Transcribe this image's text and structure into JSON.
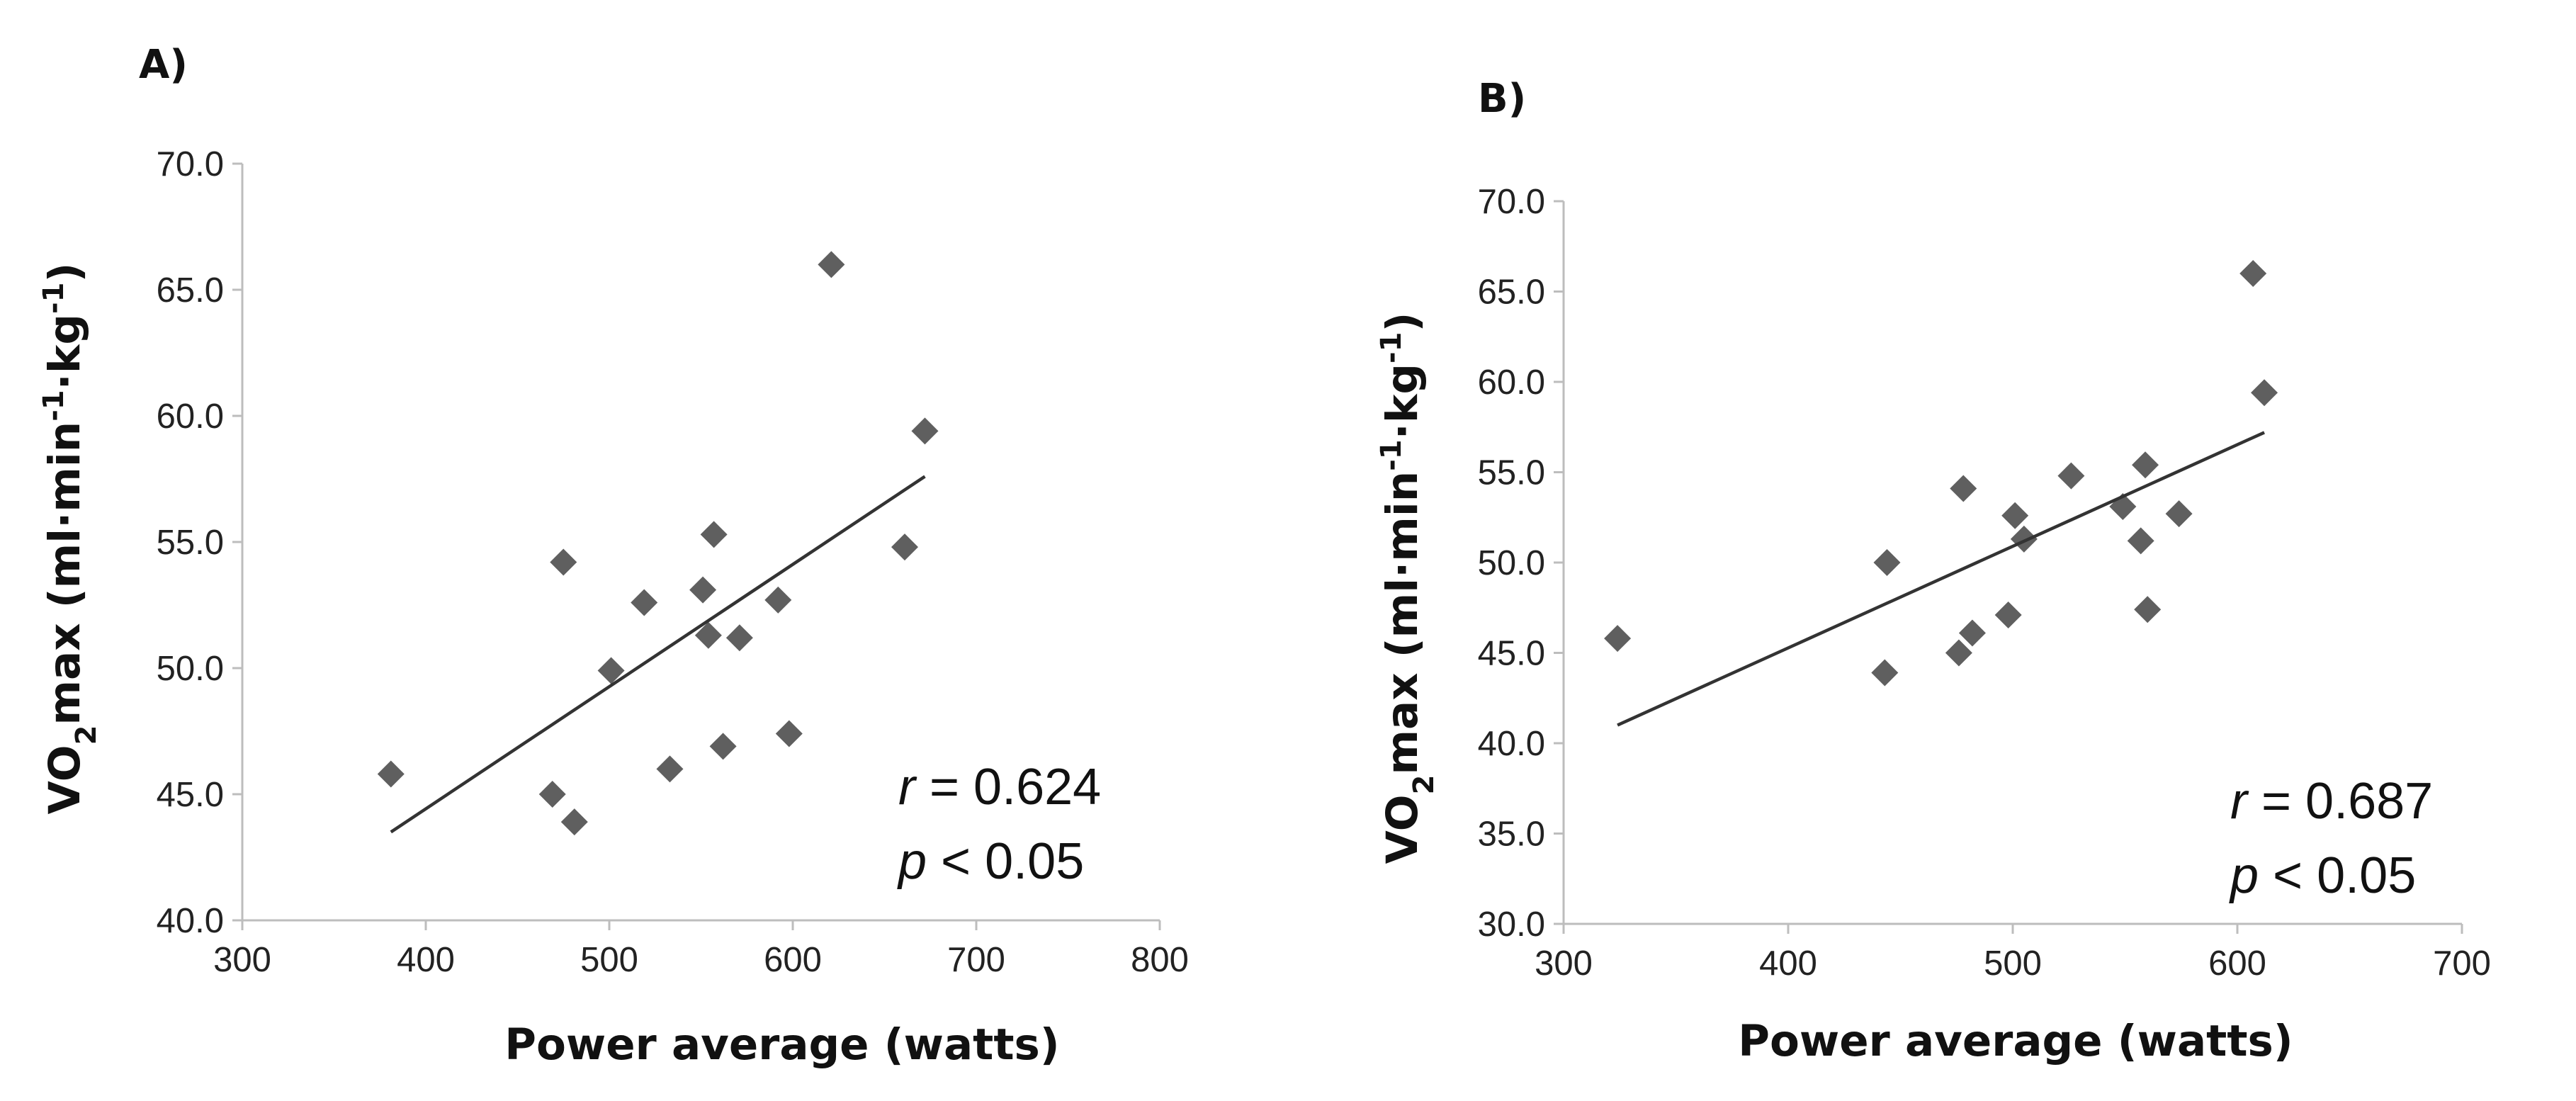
{
  "chart_data": [
    {
      "type": "scatter",
      "panel_label": "A)",
      "xlabel": "Power average (watts)",
      "ylabel": {
        "base": "VO",
        "sub": "2",
        "rest": "max (ml·min",
        "sup1": "-1",
        "mid": "·kg",
        "sup2": "-1",
        "end": ")"
      },
      "xlim": [
        300,
        800
      ],
      "ylim": [
        40,
        70
      ],
      "xticks": [
        300,
        400,
        500,
        600,
        700,
        800
      ],
      "yticks": [
        "40.0",
        "45.0",
        "50.0",
        "55.0",
        "60.0",
        "65.0",
        "70.0"
      ],
      "x": [
        381,
        469,
        475,
        481,
        501,
        519,
        533,
        551,
        554,
        557,
        562,
        571,
        592,
        598,
        621,
        661,
        672
      ],
      "y": [
        45.8,
        45.0,
        54.2,
        43.9,
        49.9,
        52.6,
        46.0,
        53.1,
        51.3,
        55.3,
        46.9,
        51.2,
        52.7,
        47.4,
        66.0,
        54.8,
        59.4
      ],
      "trendline": {
        "x": [
          381,
          672
        ],
        "y": [
          43.5,
          57.6
        ]
      },
      "annotation": {
        "r_symbol": "r",
        "r_text": " = 0.624",
        "p_symbol": "p",
        "p_text": " < 0.05"
      },
      "series_color": "#5f5f5f",
      "legend": "none",
      "grid": false
    },
    {
      "type": "scatter",
      "panel_label": "B)",
      "xlabel": "Power average (watts)",
      "ylabel": {
        "base": "VO",
        "sub": "2",
        "rest": "max (ml·min",
        "sup1": "-1",
        "mid": "·kg",
        "sup2": "-1",
        "end": ")"
      },
      "xlim": [
        300,
        700
      ],
      "ylim": [
        30,
        70
      ],
      "xticks": [
        300,
        400,
        500,
        600,
        700
      ],
      "yticks": [
        "30.0",
        "35.0",
        "40.0",
        "45.0",
        "50.0",
        "55.0",
        "60.0",
        "65.0",
        "70.0"
      ],
      "x": [
        324,
        443,
        444,
        476,
        478,
        482,
        498,
        501,
        505,
        526,
        549,
        557,
        559,
        560,
        574,
        607,
        612
      ],
      "y": [
        45.8,
        43.9,
        50.0,
        45.0,
        54.1,
        46.1,
        47.1,
        52.6,
        51.3,
        54.8,
        53.1,
        51.2,
        55.4,
        47.4,
        52.7,
        66.0,
        59.4
      ],
      "trendline": {
        "x": [
          324,
          612
        ],
        "y": [
          41.0,
          57.2
        ]
      },
      "annotation": {
        "r_symbol": "r",
        "r_text": " = 0.687",
        "p_symbol": "p",
        "p_text": " < 0.05"
      },
      "series_color": "#5f5f5f",
      "legend": "none",
      "grid": false
    }
  ]
}
